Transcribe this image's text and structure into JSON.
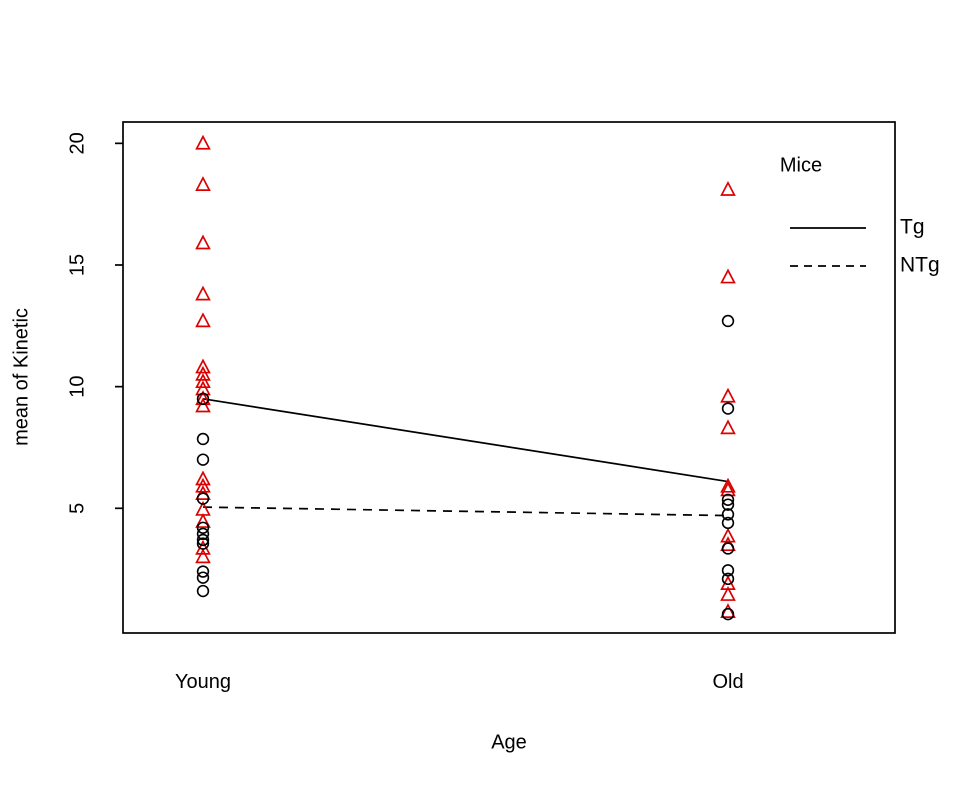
{
  "figure": {
    "background": "#ffffff",
    "foreground": "#000000"
  },
  "chart_data": {
    "type": "scatter",
    "title": "",
    "xlabel": "Age",
    "ylabel": "mean of Kinetic",
    "categories": [
      "Young",
      "Old"
    ],
    "ytick_labels": [
      "5",
      "10",
      "15",
      "20"
    ],
    "ytick_values": [
      5,
      10,
      15,
      20
    ],
    "ylim": [
      -0.1,
      20.9
    ],
    "grid": false,
    "legend": {
      "title": "Mice",
      "position": "top-right",
      "entries": [
        {
          "label": "Tg",
          "line_style": "solid"
        },
        {
          "label": "NTg",
          "line_style": "dashed"
        }
      ]
    },
    "series": [
      {
        "name": "Tg",
        "marker": "triangle",
        "color": "#dd0000",
        "points": {
          "Young": [
            20.0,
            18.3,
            15.9,
            13.8,
            12.7,
            10.8,
            10.5,
            10.2,
            9.9,
            9.5,
            9.2,
            6.2,
            5.9,
            5.6,
            4.95,
            4.45,
            3.35,
            3.0
          ],
          "Old": [
            18.1,
            14.5,
            9.6,
            8.3,
            5.9,
            5.75,
            3.85,
            3.5,
            1.9,
            1.45,
            0.75
          ]
        }
      },
      {
        "name": "NTg",
        "marker": "circle",
        "color": "#000000",
        "points": {
          "Young": [
            9.5,
            7.85,
            7.0,
            5.4,
            4.2,
            3.95,
            3.7,
            3.55,
            2.4,
            2.15,
            1.6
          ],
          "Old": [
            12.7,
            9.1,
            5.35,
            5.15,
            4.75,
            4.4,
            3.35,
            2.45,
            2.1,
            0.65
          ]
        }
      }
    ],
    "mean_lines": [
      {
        "name": "Tg",
        "style": "solid",
        "values": {
          "Young": 9.5,
          "Old": 6.1
        }
      },
      {
        "name": "NTg",
        "style": "dashed",
        "values": {
          "Young": 5.05,
          "Old": 4.7
        }
      }
    ]
  }
}
